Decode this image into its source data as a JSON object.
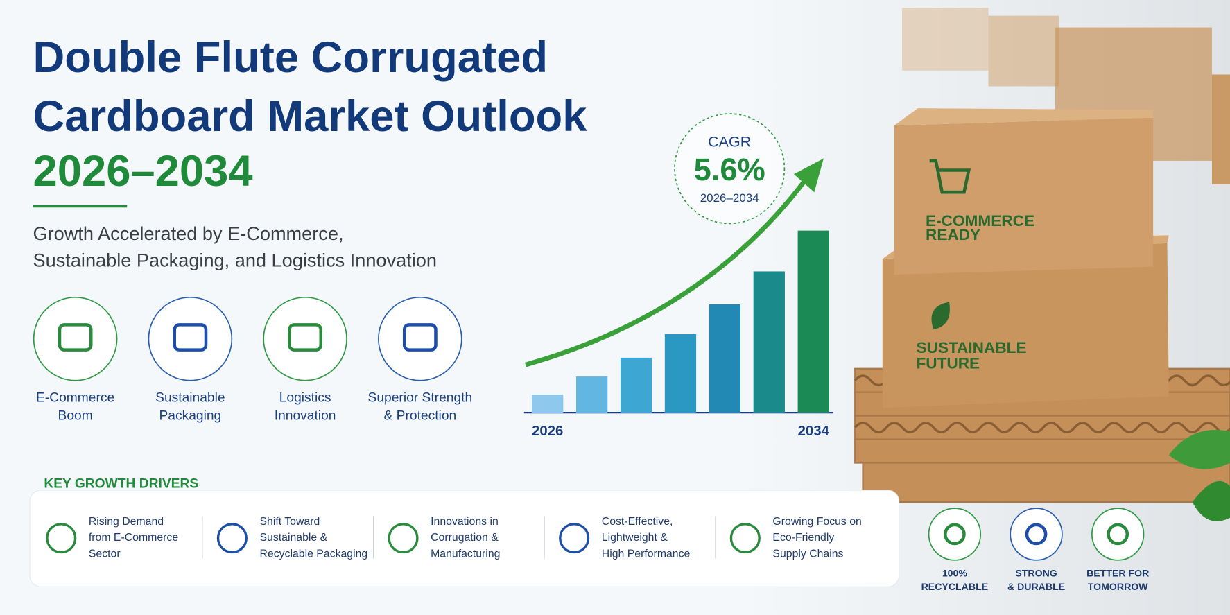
{
  "header": {
    "title_lines": [
      "Double Flute Corrugated",
      "Cardboard Market Outlook"
    ],
    "years": "2026–2034",
    "subtitle_lines": [
      "Growth Accelerated by E-Commerce,",
      "Sustainable Packaging, and Logistics Innovation"
    ]
  },
  "features": [
    {
      "lines": [
        "E-Commerce",
        "Boom"
      ]
    },
    {
      "lines": [
        "Sustainable",
        "Packaging"
      ]
    },
    {
      "lines": [
        "Logistics",
        "Innovation"
      ]
    },
    {
      "lines": [
        "Superior Strength",
        "& Protection"
      ]
    }
  ],
  "cagr": {
    "label": "CAGR",
    "value": 5.6,
    "value_label": "5.6%",
    "period": "2026–2034"
  },
  "chart_data": {
    "type": "bar",
    "categories": [
      "2026",
      null,
      null,
      null,
      null,
      null,
      "2034"
    ],
    "values": [
      23,
      46,
      70,
      100,
      138,
      180,
      232
    ],
    "colors": [
      "#8ec8ec",
      "#62b6e2",
      "#3ea6d2",
      "#2b98c4",
      "#2189b4",
      "#1a8a8a",
      "#1b8a55"
    ]
  },
  "drivers": {
    "title": "KEY GROWTH DRIVERS",
    "items": [
      {
        "lines": [
          "Rising Demand",
          "from E-Commerce",
          "Sector"
        ]
      },
      {
        "lines": [
          "Shift Toward",
          "Sustainable &",
          "Recyclable Packaging"
        ]
      },
      {
        "lines": [
          "Innovations in",
          "Corrugation &",
          "Manufacturing"
        ]
      },
      {
        "lines": [
          "Cost-Effective,",
          "Lightweight &",
          "High Performance"
        ]
      },
      {
        "lines": [
          "Growing Focus on",
          "Eco-Friendly",
          "Supply Chains"
        ]
      }
    ]
  },
  "boxes": {
    "top": [
      "E-COMMERCE",
      "READY"
    ],
    "bottom": [
      "SUSTAINABLE",
      "FUTURE"
    ]
  },
  "badges": [
    {
      "lines": [
        "100%",
        "RECYCLABLE"
      ]
    },
    {
      "lines": [
        "STRONG",
        "& DURABLE"
      ]
    },
    {
      "lines": [
        "BETTER FOR",
        "TOMORROW"
      ]
    }
  ]
}
